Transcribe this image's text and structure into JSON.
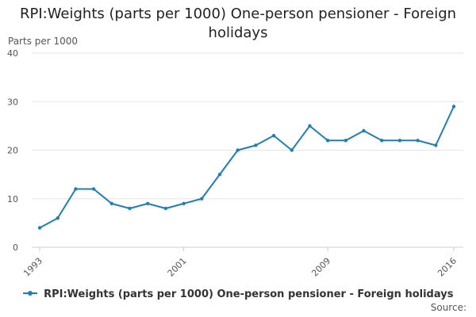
{
  "colors": {
    "series": "#1f7fb5",
    "grid": "#e6e6e6",
    "axis": "#cccccc"
  },
  "source_label": "Source:",
  "chart_data": {
    "type": "line",
    "title": "RPI:Weights (parts per 1000) One-person pensioner - Foreign holidays",
    "ylabel": "Parts per 1000",
    "xlabel": "",
    "ylim": [
      0,
      40
    ],
    "yticks": [
      0,
      10,
      20,
      30,
      40
    ],
    "xlim": [
      1993,
      2016
    ],
    "xticks": [
      1993,
      2001,
      2009,
      2016
    ],
    "grid": true,
    "legend_position": "bottom",
    "series": [
      {
        "name": "RPI:Weights (parts per 1000) One-person pensioner - Foreign holidays",
        "x": [
          1993,
          1994,
          1995,
          1996,
          1997,
          1998,
          1999,
          2000,
          2001,
          2002,
          2003,
          2004,
          2005,
          2006,
          2007,
          2008,
          2009,
          2010,
          2011,
          2012,
          2013,
          2014,
          2015,
          2016
        ],
        "values": [
          4,
          6,
          12,
          12,
          9,
          8,
          9,
          8,
          9,
          10,
          15,
          20,
          21,
          23,
          20,
          25,
          22,
          22,
          24,
          22,
          22,
          22,
          21,
          29
        ]
      }
    ]
  }
}
